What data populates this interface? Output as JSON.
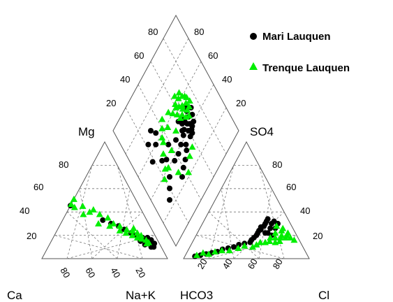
{
  "chart_data": {
    "type": "scatter",
    "subtype": "piper-diagram",
    "grid": true,
    "legend_placement": "top-right",
    "legend": [
      {
        "name": "Mari Lauquen",
        "color": "#000000",
        "marker": "circle"
      },
      {
        "name": "Trenque Lauquen",
        "color": "#00ee00",
        "marker": "triangle"
      }
    ],
    "cation_triangle": {
      "corners": {
        "left": "Ca",
        "right": "Na+K",
        "top": "Mg"
      },
      "left_ticks": [
        "20",
        "40",
        "60",
        "80"
      ],
      "bottom_ticks": [
        "80",
        "60",
        "40",
        "20"
      ],
      "series": [
        {
          "name": "Mari Lauquen",
          "points": [
            [
              5,
              12,
              83
            ],
            [
              6,
              10,
              84
            ],
            [
              4,
              13,
              83
            ],
            [
              7,
              12,
              81
            ],
            [
              6,
              14,
              80
            ],
            [
              8,
              10,
              82
            ],
            [
              5,
              16,
              79
            ],
            [
              9,
              13,
              78
            ],
            [
              7,
              18,
              75
            ],
            [
              10,
              15,
              75
            ],
            [
              12,
              12,
              76
            ],
            [
              11,
              18,
              71
            ],
            [
              14,
              15,
              71
            ],
            [
              15,
              20,
              65
            ],
            [
              18,
              22,
              60
            ],
            [
              22,
              25,
              53
            ],
            [
              25,
              28,
              47
            ],
            [
              30,
              30,
              40
            ],
            [
              35,
              33,
              32
            ],
            [
              60,
              50,
              -10
            ]
          ]
        },
        {
          "name": "Trenque Lauquen",
          "points": [
            [
              8,
              14,
              78
            ],
            [
              9,
              16,
              75
            ],
            [
              10,
              13,
              77
            ],
            [
              12,
              17,
              71
            ],
            [
              11,
              20,
              69
            ],
            [
              13,
              22,
              65
            ],
            [
              15,
              18,
              67
            ],
            [
              16,
              24,
              60
            ],
            [
              14,
              26,
              60
            ],
            [
              18,
              20,
              62
            ],
            [
              20,
              25,
              55
            ],
            [
              22,
              22,
              56
            ],
            [
              24,
              28,
              48
            ],
            [
              26,
              24,
              50
            ],
            [
              28,
              30,
              42
            ],
            [
              30,
              35,
              35
            ],
            [
              32,
              28,
              40
            ],
            [
              35,
              38,
              27
            ],
            [
              38,
              42,
              20
            ],
            [
              40,
              30,
              30
            ],
            [
              42,
              40,
              18
            ],
            [
              45,
              45,
              10
            ],
            [
              48,
              38,
              14
            ],
            [
              50,
              52,
              -2
            ],
            [
              52,
              44,
              4
            ],
            [
              55,
              48,
              -3
            ]
          ]
        }
      ]
    },
    "anion_triangle": {
      "corners": {
        "left": "HCO3",
        "right": "Cl",
        "top": "SO4"
      },
      "right_ticks": [
        "80",
        "60",
        "40",
        "20"
      ],
      "bottom_ticks": [
        "20",
        "40",
        "60",
        "80"
      ],
      "series": [
        {
          "name": "Mari Lauquen",
          "points": [
            [
              90,
              2,
              8
            ],
            [
              85,
              3,
              12
            ],
            [
              80,
              4,
              16
            ],
            [
              75,
              5,
              20
            ],
            [
              70,
              6,
              24
            ],
            [
              65,
              8,
              27
            ],
            [
              60,
              9,
              31
            ],
            [
              55,
              10,
              35
            ],
            [
              50,
              12,
              38
            ],
            [
              45,
              13,
              42
            ],
            [
              40,
              14,
              46
            ],
            [
              38,
              16,
              46
            ],
            [
              35,
              18,
              47
            ],
            [
              32,
              20,
              48
            ],
            [
              30,
              22,
              48
            ],
            [
              28,
              24,
              48
            ],
            [
              26,
              25,
              49
            ],
            [
              25,
              27,
              48
            ],
            [
              22,
              28,
              50
            ],
            [
              20,
              30,
              50
            ],
            [
              18,
              32,
              50
            ],
            [
              16,
              34,
              50
            ],
            [
              15,
              30,
              55
            ],
            [
              12,
              32,
              56
            ],
            [
              10,
              30,
              60
            ],
            [
              14,
              26,
              60
            ],
            [
              18,
              26,
              56
            ],
            [
              22,
              22,
              56
            ],
            [
              20,
              20,
              60
            ],
            [
              24,
              22,
              54
            ]
          ]
        },
        {
          "name": "Trenque Lauquen",
          "points": [
            [
              88,
              3,
              9
            ],
            [
              82,
              5,
              13
            ],
            [
              78,
              4,
              18
            ],
            [
              72,
              6,
              22
            ],
            [
              66,
              7,
              27
            ],
            [
              60,
              7,
              33
            ],
            [
              52,
              9,
              39
            ],
            [
              46,
              11,
              43
            ],
            [
              40,
              10,
              50
            ],
            [
              36,
              12,
              52
            ],
            [
              32,
              14,
              54
            ],
            [
              28,
              14,
              58
            ],
            [
              24,
              15,
              61
            ],
            [
              20,
              14,
              66
            ],
            [
              16,
              15,
              69
            ],
            [
              14,
              18,
              68
            ],
            [
              12,
              20,
              68
            ],
            [
              10,
              18,
              72
            ],
            [
              8,
              20,
              72
            ],
            [
              6,
              18,
              76
            ],
            [
              10,
              24,
              66
            ],
            [
              8,
              26,
              66
            ],
            [
              12,
              28,
              60
            ],
            [
              16,
              22,
              62
            ],
            [
              6,
              22,
              72
            ],
            [
              4,
              16,
              80
            ],
            [
              18,
              18,
              64
            ],
            [
              22,
              18,
              60
            ]
          ]
        }
      ]
    },
    "diamond": {
      "corners": {
        "left": "Mg",
        "right": "SO4"
      },
      "upper_left_ticks": [
        "80",
        "60",
        "40",
        "20"
      ],
      "upper_right_ticks": [
        "80",
        "60",
        "40",
        "20"
      ],
      "series": [
        {
          "name": "Mari Lauquen",
          "points": [
            [
              55,
              45
            ],
            [
              60,
              40
            ],
            [
              62,
              44
            ],
            [
              58,
              48
            ],
            [
              64,
              42
            ],
            [
              66,
              46
            ],
            [
              60,
              50
            ],
            [
              68,
              40
            ],
            [
              56,
              52
            ],
            [
              70,
              44
            ],
            [
              63,
              38
            ],
            [
              67,
              50
            ],
            [
              59,
              36
            ],
            [
              72,
              48
            ],
            [
              54,
              42
            ],
            [
              61,
              47
            ],
            [
              65,
              39
            ],
            [
              57,
              44
            ],
            [
              69,
              52
            ],
            [
              62,
              36
            ],
            [
              40,
              28
            ],
            [
              45,
              30
            ],
            [
              50,
              33
            ],
            [
              35,
              25
            ],
            [
              30,
              45
            ],
            [
              25,
              35
            ],
            [
              20,
              30
            ],
            [
              15,
              25
            ],
            [
              48,
              40
            ],
            [
              38,
              50
            ],
            [
              28,
              60
            ],
            [
              33,
              65
            ],
            [
              18,
              55
            ],
            [
              42,
              38
            ],
            [
              52,
              36
            ],
            [
              46,
              46
            ],
            [
              36,
              38
            ],
            [
              26,
              48
            ],
            [
              22,
              66
            ],
            [
              30,
              70
            ]
          ]
        },
        {
          "name": "Trenque Lauquen",
          "points": [
            [
              62,
              52
            ],
            [
              66,
              56
            ],
            [
              64,
              48
            ],
            [
              70,
              54
            ],
            [
              58,
              56
            ],
            [
              68,
              50
            ],
            [
              72,
              58
            ],
            [
              60,
              60
            ],
            [
              74,
              52
            ],
            [
              66,
              62
            ],
            [
              70,
              60
            ],
            [
              63,
              58
            ],
            [
              67,
              46
            ],
            [
              71,
              50
            ],
            [
              59,
              52
            ],
            [
              65,
              54
            ],
            [
              73,
              56
            ],
            [
              69,
              64
            ],
            [
              61,
              62
            ],
            [
              64,
              66
            ],
            [
              35,
              55
            ],
            [
              40,
              62
            ],
            [
              45,
              58
            ],
            [
              50,
              50
            ],
            [
              30,
              50
            ],
            [
              25,
              42
            ],
            [
              38,
              45
            ],
            [
              55,
              60
            ],
            [
              20,
              38
            ],
            [
              44,
              66
            ],
            [
              52,
              64
            ],
            [
              28,
              40
            ],
            [
              34,
              30
            ],
            [
              42,
              22
            ],
            [
              50,
              28
            ],
            [
              56,
              30
            ],
            [
              36,
              58
            ]
          ]
        }
      ]
    }
  }
}
